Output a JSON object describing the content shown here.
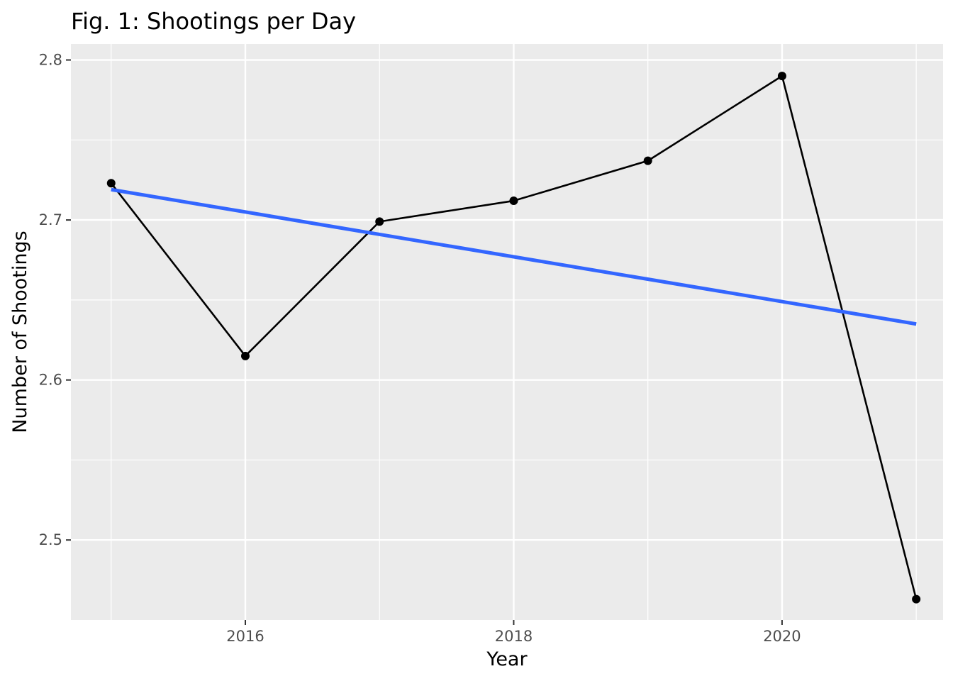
{
  "chart_data": {
    "type": "line",
    "title": "Fig. 1: Shootings per Day",
    "xlabel": "Year",
    "ylabel": "Number of Shootings",
    "x_ticks": [
      "2016",
      "2018",
      "2020"
    ],
    "x_tick_values": [
      2016,
      2018,
      2020
    ],
    "y_ticks": [
      "2.5",
      "2.6",
      "2.7",
      "2.8"
    ],
    "y_tick_values": [
      2.5,
      2.6,
      2.7,
      2.8
    ],
    "xlim": [
      2014.7,
      2021.2
    ],
    "ylim": [
      2.45,
      2.81
    ],
    "grid": true,
    "panel_background": "#ebebeb",
    "series": [
      {
        "type": "line+points",
        "color": "#000000",
        "x": [
          2015,
          2016,
          2017,
          2018,
          2019,
          2020,
          2021
        ],
        "y": [
          2.723,
          2.615,
          2.699,
          2.712,
          2.737,
          2.79,
          2.463
        ]
      },
      {
        "type": "trend-line",
        "color": "#3366ff",
        "x": [
          2015,
          2021
        ],
        "y": [
          2.719,
          2.635
        ]
      }
    ]
  }
}
